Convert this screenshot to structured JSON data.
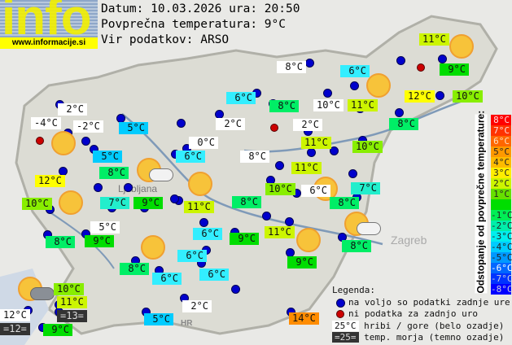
{
  "logo": {
    "text": "info",
    "url": "www.informacije.si"
  },
  "header": {
    "date_line": "Datum: 10.03.2026 ura: 20:50",
    "avg_line": "Povprečna temperatura: 9°C",
    "source_line": "Vir podatkov: ARSO"
  },
  "colors": {
    "+5": "#ff8c00",
    "+3": "#ffff00",
    "+2": "#ccf500",
    "+1": "#88ee00",
    "0": "#00dd00",
    "-1": "#00ee66",
    "-2": "#22eecc",
    "-3": "#33eeff",
    "-4": "#00ccff",
    "mountain": "#ffffff",
    "sea": "#333333"
  },
  "labels": [
    {
      "t": "11°C",
      "c": "+2"
    },
    {
      "t": "9°C",
      "c": "0"
    },
    {
      "t": "10°C",
      "c": "+1"
    },
    {
      "t": "12°C",
      "c": "+3"
    },
    {
      "t": "6°C",
      "c": "-3"
    },
    {
      "t": "11°C",
      "c": "+2"
    },
    {
      "t": "8°C",
      "c": "mountain"
    },
    {
      "t": "10°C",
      "c": "mountain"
    },
    {
      "t": "8°C",
      "c": "-1"
    },
    {
      "t": "6°C",
      "c": "-3"
    },
    {
      "t": "8°C",
      "c": "-1"
    },
    {
      "t": "2°C",
      "c": "mountain"
    },
    {
      "t": "11°C",
      "c": "+2"
    },
    {
      "t": "10°C",
      "c": "+1"
    },
    {
      "t": "11°C",
      "c": "+2"
    },
    {
      "t": "8°C",
      "c": "mountain"
    },
    {
      "t": "2°C",
      "c": "mountain"
    },
    {
      "t": "0°C",
      "c": "mountain"
    },
    {
      "t": "6°C",
      "c": "-3"
    },
    {
      "t": "2°C",
      "c": "mountain"
    },
    {
      "t": "-4°C",
      "c": "mountain"
    },
    {
      "t": "-2°C",
      "c": "mountain"
    },
    {
      "t": "5°C",
      "c": "-4"
    },
    {
      "t": "5°C",
      "c": "-4"
    },
    {
      "t": "8°C",
      "c": "-1"
    },
    {
      "t": "12°C",
      "c": "+3"
    },
    {
      "t": "10°C",
      "c": "+1"
    },
    {
      "t": "7°C",
      "c": "-2"
    },
    {
      "t": "9°C",
      "c": "0"
    },
    {
      "t": "11°C",
      "c": "+2"
    },
    {
      "t": "8°C",
      "c": "-1"
    },
    {
      "t": "10°C",
      "c": "+1"
    },
    {
      "t": "6°C",
      "c": "mountain"
    },
    {
      "t": "7°C",
      "c": "-2"
    },
    {
      "t": "8°C",
      "c": "-1"
    },
    {
      "t": "5°C",
      "c": "mountain"
    },
    {
      "t": "8°C",
      "c": "-1"
    },
    {
      "t": "9°C",
      "c": "0"
    },
    {
      "t": "6°C",
      "c": "-3"
    },
    {
      "t": "9°C",
      "c": "0"
    },
    {
      "t": "11°C",
      "c": "+2"
    },
    {
      "t": "8°C",
      "c": "-1"
    },
    {
      "t": "6°C",
      "c": "-3"
    },
    {
      "t": "8°C",
      "c": "-1"
    },
    {
      "t": "6°C",
      "c": "-3"
    },
    {
      "t": "6°C",
      "c": "-3"
    },
    {
      "t": "9°C",
      "c": "0"
    },
    {
      "t": "10°C",
      "c": "+1"
    },
    {
      "t": "11°C",
      "c": "+2"
    },
    {
      "t": "=13=",
      "c": "sea"
    },
    {
      "t": "12°C",
      "c": "mountain"
    },
    {
      "t": "=12=",
      "c": "sea"
    },
    {
      "t": "9°C",
      "c": "0"
    },
    {
      "t": "2°C",
      "c": "mountain"
    },
    {
      "t": "5°C",
      "c": "-4"
    },
    {
      "t": "14°C",
      "c": "+5"
    }
  ],
  "weather_icons": [
    "sun",
    "sun",
    "sun",
    "sun",
    "sun",
    "sun",
    "sun",
    "sun",
    "sun-cloud",
    "sun-cloud",
    "sun-clouds"
  ],
  "map_places": [
    "Ljubljana",
    "Zagreb",
    "HR"
  ],
  "scale": {
    "title": "Odstopanje od povprečne temperature:",
    "steps": [
      {
        "t": "8°C",
        "c": "#ff0000",
        "f": "#ffdddd"
      },
      {
        "t": "7°C",
        "c": "#ff3300",
        "f": "#ffdddd"
      },
      {
        "t": "6°C",
        "c": "#ff6600",
        "f": "#ffe0c0"
      },
      {
        "t": "5°C",
        "c": "#ff9900",
        "f": "#222"
      },
      {
        "t": "4°C",
        "c": "#ffbb00",
        "f": "#222"
      },
      {
        "t": "3°C",
        "c": "#ffee00",
        "f": "#222"
      },
      {
        "t": "2°C",
        "c": "#ccf500",
        "f": "#222"
      },
      {
        "t": "1°C",
        "c": "#66e000",
        "f": "#222"
      },
      {
        "t": "",
        "c": "#00dd00",
        "f": "#222"
      },
      {
        "t": "-1°C",
        "c": "#00ee55",
        "f": "#222"
      },
      {
        "t": "-2°C",
        "c": "#00eeaa",
        "f": "#222"
      },
      {
        "t": "-3°C",
        "c": "#00eeee",
        "f": "#222"
      },
      {
        "t": "-4°C",
        "c": "#00ccff",
        "f": "#222"
      },
      {
        "t": "-5°C",
        "c": "#0099ff",
        "f": "#222"
      },
      {
        "t": "-6°C",
        "c": "#0066ff",
        "f": "#fff"
      },
      {
        "t": "-7°C",
        "c": "#0033ff",
        "f": "#ccd"
      },
      {
        "t": "-8°C",
        "c": "#0000ff",
        "f": "#ccd"
      }
    ]
  },
  "legend": {
    "title": "Legenda:",
    "blue": "na voljo so podatki zadnje ure",
    "red": "ni podatka za zadnjo uro",
    "mountain_sample": "25°C",
    "mountain": "hribi / gore (belo ozadje)",
    "sea_sample": "=25=",
    "sea": "temp. morja (temno ozadje)"
  }
}
